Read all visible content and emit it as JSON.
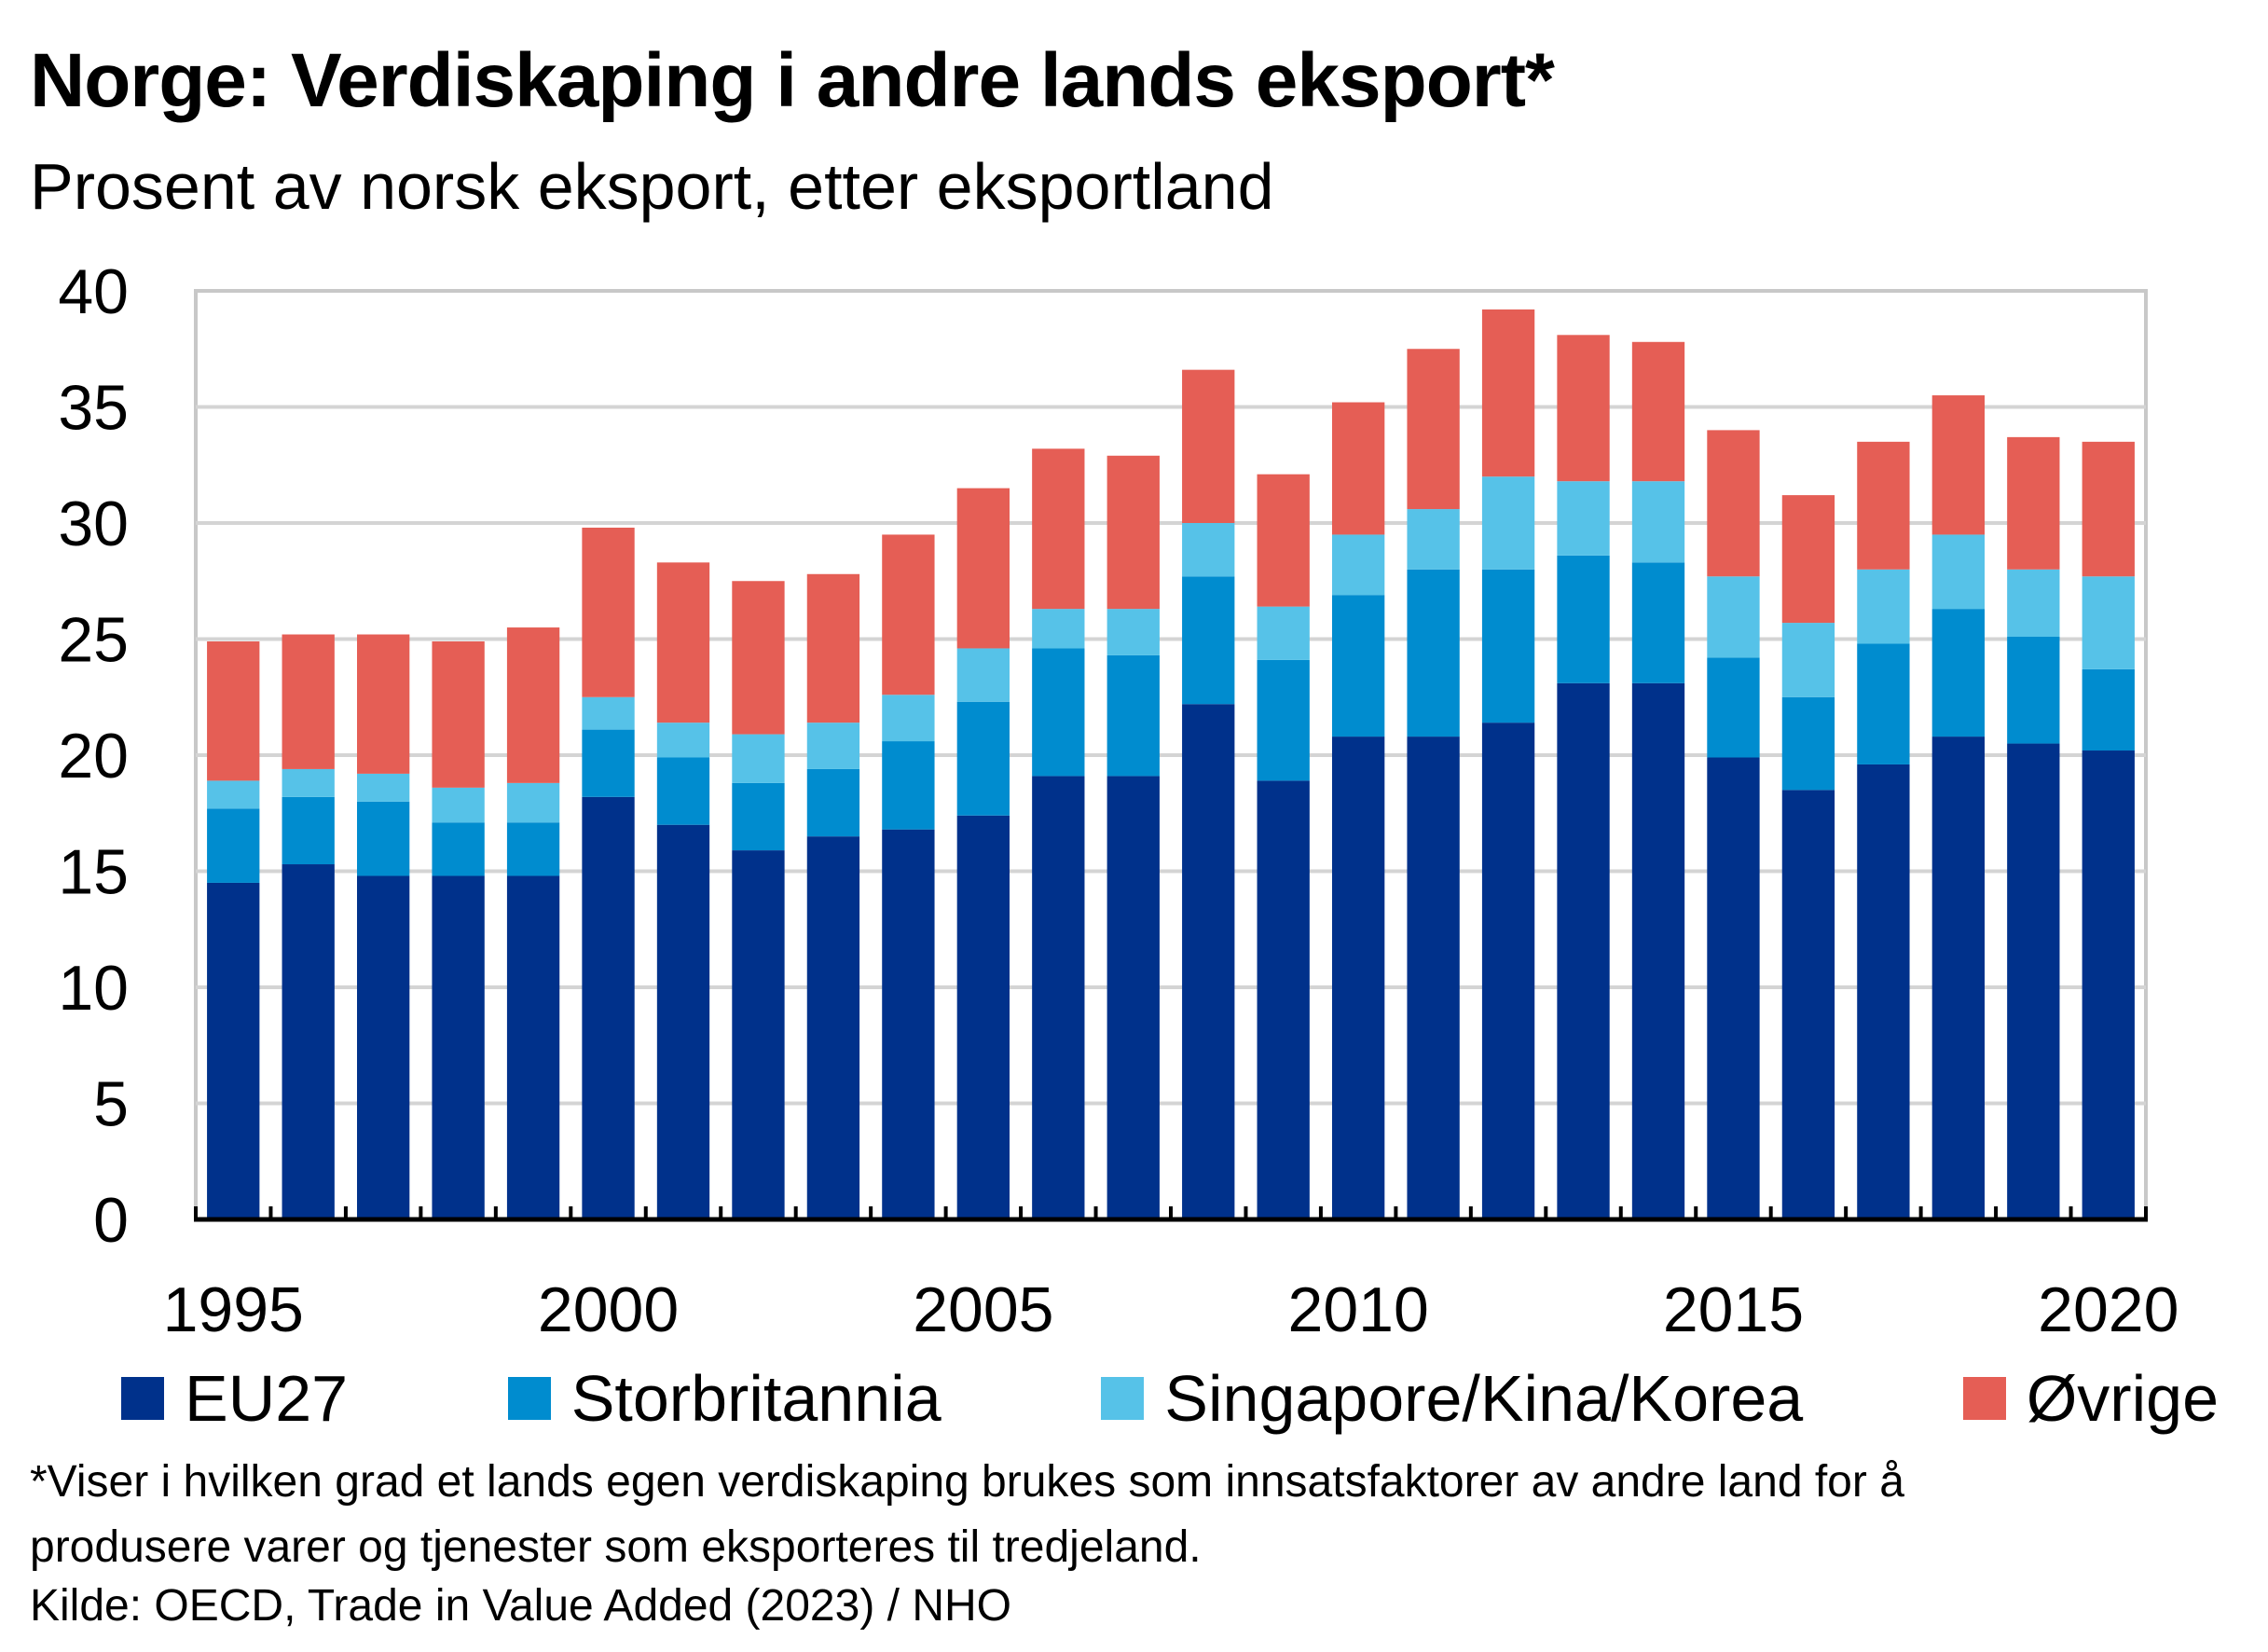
{
  "chart_data": {
    "type": "bar",
    "stacked": true,
    "title": "Norge: Verdiskaping i andre lands eksport*",
    "subtitle": "Prosent av norsk eksport, etter eksportland",
    "xlabel": "",
    "ylabel": "",
    "ylim": [
      0,
      40
    ],
    "yticks": [
      "0",
      "5",
      "10",
      "15",
      "20",
      "25",
      "30",
      "35",
      "40"
    ],
    "xtick_labels": [
      "1995",
      "2000",
      "2005",
      "2010",
      "2015",
      "2020"
    ],
    "categories": [
      "1995",
      "1996",
      "1997",
      "1998",
      "1999",
      "2000",
      "2001",
      "2002",
      "2003",
      "2004",
      "2005",
      "2006",
      "2007",
      "2008",
      "2009",
      "2010",
      "2011",
      "2012",
      "2013",
      "2014",
      "2015",
      "2016",
      "2017",
      "2018",
      "2019",
      "2020"
    ],
    "series": [
      {
        "name": "EU27",
        "color": "#00318b",
        "values": [
          14.5,
          15.3,
          14.8,
          14.8,
          14.8,
          18.2,
          17.0,
          15.9,
          16.5,
          16.8,
          17.4,
          19.1,
          19.1,
          22.2,
          18.9,
          20.8,
          20.8,
          21.4,
          23.1,
          23.1,
          19.9,
          18.5,
          19.6,
          20.8,
          20.5,
          20.2
        ]
      },
      {
        "name": "Storbritannia",
        "color": "#008ccf",
        "values": [
          3.2,
          2.9,
          3.2,
          2.3,
          2.3,
          2.9,
          2.9,
          2.9,
          2.9,
          3.8,
          4.9,
          5.5,
          5.2,
          5.5,
          5.2,
          6.1,
          7.2,
          6.6,
          5.5,
          5.2,
          4.3,
          4.0,
          5.2,
          5.5,
          4.6,
          3.5
        ]
      },
      {
        "name": "Singapore/Kina/Korea",
        "color": "#56c2e8",
        "values": [
          1.2,
          1.2,
          1.2,
          1.5,
          1.7,
          1.4,
          1.5,
          2.1,
          2.0,
          2.0,
          2.3,
          1.7,
          2.0,
          2.3,
          2.3,
          2.6,
          2.6,
          4.0,
          3.2,
          3.5,
          3.5,
          3.2,
          3.2,
          3.2,
          2.9,
          4.0
        ]
      },
      {
        "name": "Øvrige",
        "color": "#e55e55",
        "values": [
          6.0,
          5.8,
          6.0,
          6.3,
          6.7,
          7.3,
          6.9,
          6.6,
          6.4,
          6.9,
          6.9,
          6.9,
          6.6,
          6.6,
          5.7,
          5.7,
          6.9,
          7.2,
          6.3,
          6.0,
          6.3,
          5.5,
          5.5,
          6.0,
          5.7,
          5.8
        ]
      }
    ]
  },
  "footnote": {
    "line1": "*Viser i hvilken grad et lands egen verdiskaping brukes som innsatsfaktorer av andre land for å",
    "line2": "produsere varer og tjenester som eksporteres til tredjeland."
  },
  "source": "Kilde: OECD, Trade in Value Added (2023) / NHO"
}
